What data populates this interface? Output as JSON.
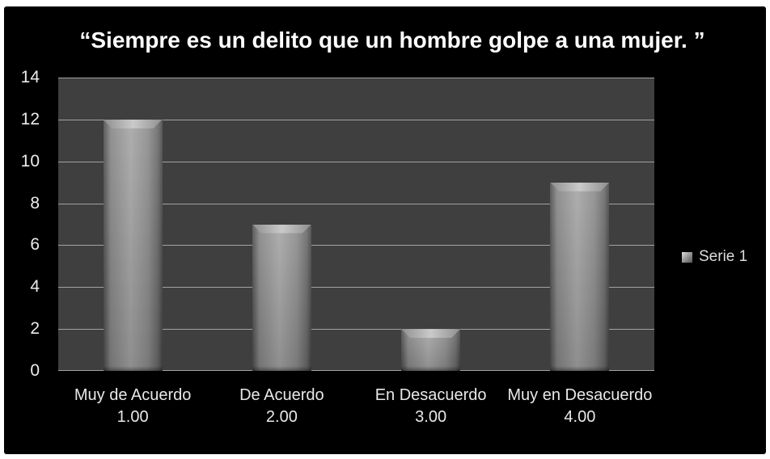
{
  "page": {
    "background_color": "#ffffff",
    "canvas_background_color": "#000000"
  },
  "chart_data": {
    "type": "bar",
    "title": "“Siempre es un delito que un hombre golpe a una mujer. ”",
    "categories": [
      {
        "label": "Muy de Acuerdo",
        "code": "1.00"
      },
      {
        "label": "De Acuerdo",
        "code": "2.00"
      },
      {
        "label": "En Desacuerdo",
        "code": "3.00"
      },
      {
        "label": "Muy en Desacuerdo",
        "code": "4.00"
      }
    ],
    "series": [
      {
        "name": "Serie 1",
        "values": [
          12,
          7,
          2,
          9
        ]
      }
    ],
    "xlabel": "",
    "ylabel": "",
    "ylim": [
      0,
      14
    ],
    "ytick_step": 2,
    "yticks": [
      0,
      2,
      4,
      6,
      8,
      10,
      12,
      14
    ],
    "grid": true,
    "legend": {
      "position": "right",
      "entries": [
        "Serie 1"
      ]
    },
    "colors": {
      "plot_background": "#3f3f3f",
      "gridline": "#a2a2a2",
      "bar_center": "#a6a6a6",
      "bar_edge": "#4c4c4c",
      "title_text": "#ffffff",
      "axis_text": "#e8e8e8",
      "legend_text": "#dcdcdc"
    }
  }
}
